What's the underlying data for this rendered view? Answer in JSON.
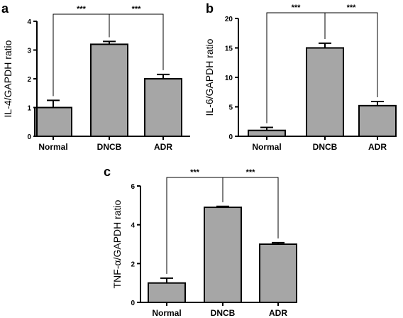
{
  "chart_data": [
    {
      "panel": "a",
      "type": "bar",
      "categories": [
        "Normal",
        "DNCB",
        "ADR"
      ],
      "values": [
        1.0,
        3.2,
        2.0
      ],
      "errors": [
        0.25,
        0.1,
        0.15
      ],
      "ylabel": "IL-4/GAPDH ratio",
      "ylim": [
        0,
        4
      ],
      "yticks": [
        "0",
        "1",
        "2",
        "3",
        "4"
      ],
      "significance": [
        {
          "from": "Normal",
          "to": "DNCB",
          "label": "***"
        },
        {
          "from": "DNCB",
          "to": "ADR",
          "label": "***"
        }
      ],
      "bar_color": "#a6a6a6"
    },
    {
      "panel": "b",
      "type": "bar",
      "categories": [
        "Normal",
        "DNCB",
        "ADR"
      ],
      "values": [
        1.0,
        15.0,
        5.2
      ],
      "errors": [
        0.5,
        0.8,
        0.7
      ],
      "ylabel": "IL-6/GAPDH ratio",
      "ylim": [
        0,
        20
      ],
      "yticks": [
        "0",
        "5",
        "10",
        "15",
        "20"
      ],
      "significance": [
        {
          "from": "Normal",
          "to": "DNCB",
          "label": "***"
        },
        {
          "from": "DNCB",
          "to": "ADR",
          "label": "***"
        }
      ],
      "bar_color": "#a6a6a6"
    },
    {
      "panel": "c",
      "type": "bar",
      "categories": [
        "Normal",
        "DNCB",
        "ADR"
      ],
      "values": [
        1.0,
        4.9,
        3.0
      ],
      "errors": [
        0.25,
        0.05,
        0.08
      ],
      "ylabel": "TNF-α/GAPDH ratio",
      "ylim": [
        0,
        6
      ],
      "yticks": [
        "0",
        "2",
        "4",
        "6"
      ],
      "significance": [
        {
          "from": "Normal",
          "to": "DNCB",
          "label": "***"
        },
        {
          "from": "DNCB",
          "to": "ADR",
          "label": "***"
        }
      ],
      "bar_color": "#a6a6a6"
    }
  ]
}
